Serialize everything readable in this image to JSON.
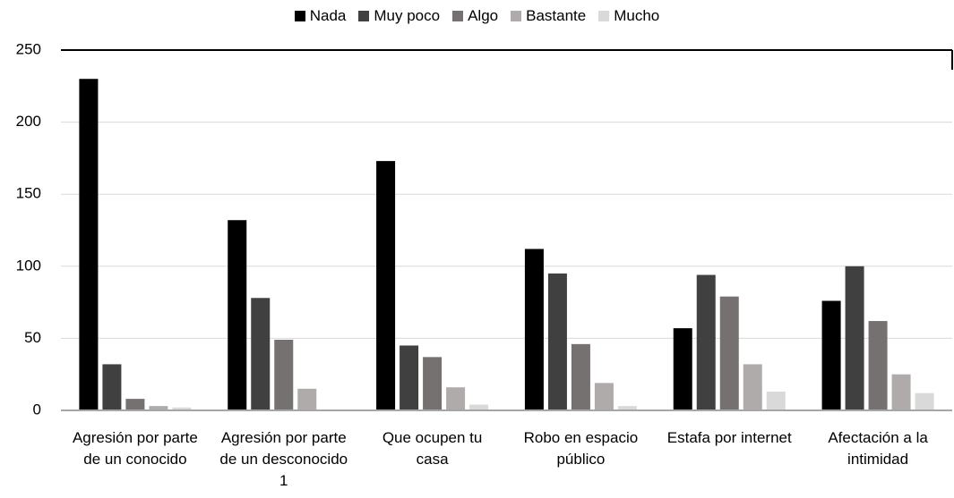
{
  "chart_data": {
    "type": "bar",
    "categories": [
      "Agresión por parte de un conocido",
      "Agresión por parte de un desconocido 1",
      "Que ocupen tu casa",
      "Robo en espacio público",
      "Estafa por internet",
      "Afectación a la intimidad"
    ],
    "series": [
      {
        "name": "Nada",
        "color": "#000000",
        "values": [
          230,
          132,
          173,
          112,
          57,
          76
        ]
      },
      {
        "name": "Muy poco",
        "color": "#404040",
        "values": [
          32,
          78,
          45,
          95,
          94,
          100
        ]
      },
      {
        "name": "Algo",
        "color": "#767171",
        "values": [
          8,
          49,
          37,
          46,
          79,
          62
        ]
      },
      {
        "name": "Bastante",
        "color": "#afabab",
        "values": [
          3,
          15,
          16,
          19,
          32,
          25
        ]
      },
      {
        "name": "Mucho",
        "color": "#d9d9d9",
        "values": [
          2,
          0,
          4,
          3,
          13,
          12
        ]
      }
    ],
    "ylim": [
      0,
      250
    ],
    "yticks": [
      0,
      50,
      100,
      150,
      200,
      250
    ],
    "grid": true,
    "legend": "top"
  }
}
